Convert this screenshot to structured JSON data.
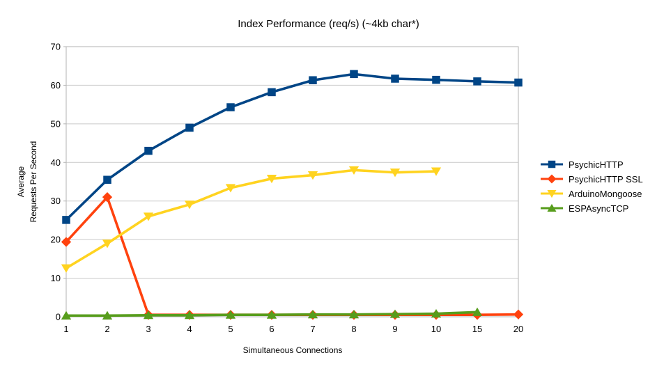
{
  "chart_data": {
    "type": "line",
    "title": "Index Performance (req/s) (~4kb char*)",
    "xlabel": "Simultaneous Connections",
    "ylabel": "Average Requests Per Second",
    "ylabel_lines": [
      "Average",
      "Requests Per Second"
    ],
    "categories": [
      "1",
      "2",
      "3",
      "4",
      "5",
      "6",
      "7",
      "8",
      "9",
      "10",
      "15",
      "20"
    ],
    "ylim": [
      0,
      70
    ],
    "y_ticks": [
      0,
      10,
      20,
      30,
      40,
      50,
      60,
      70
    ],
    "grid": "horizontal-only",
    "legend_position": "right",
    "series": [
      {
        "name": "PsychicHTTP",
        "color": "#004586",
        "marker": "square",
        "values": [
          25.1,
          35.5,
          43.0,
          49.0,
          54.3,
          58.2,
          61.3,
          62.9,
          61.7,
          61.4,
          61.0,
          60.7
        ]
      },
      {
        "name": "PsychicHTTP SSL",
        "color": "#FF420E",
        "marker": "diamond",
        "values": [
          19.4,
          31.0,
          0.5,
          0.5,
          0.5,
          0.5,
          0.5,
          0.5,
          0.5,
          0.5,
          0.5,
          0.6
        ]
      },
      {
        "name": "ArduinoMongoose",
        "color": "#FFD320",
        "marker": "triangle-down",
        "values": [
          12.6,
          19.0,
          26.0,
          29.1,
          33.4,
          35.8,
          36.7,
          38.0,
          37.4,
          37.7,
          null,
          null
        ]
      },
      {
        "name": "ESPAsyncTCP",
        "color": "#579D1C",
        "marker": "triangle-up",
        "values": [
          0.3,
          0.3,
          0.4,
          0.4,
          0.5,
          0.5,
          0.6,
          0.6,
          0.7,
          0.8,
          1.2,
          null
        ]
      }
    ]
  },
  "colors": {
    "background": "#ffffff",
    "plot_border": "#b3b3b3",
    "gridline": "#c9c9c9",
    "tick": "#b3b3b3",
    "text": "#000000"
  }
}
